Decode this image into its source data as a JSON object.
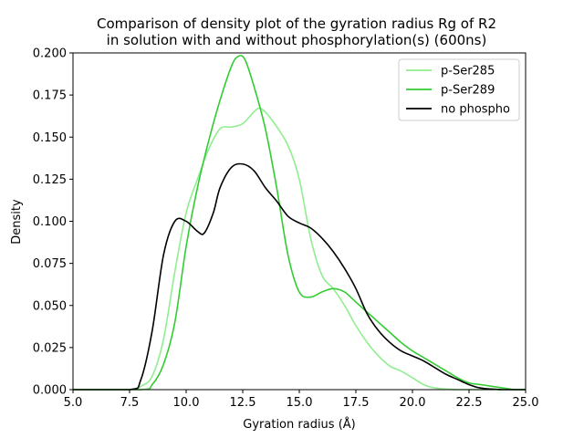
{
  "chart_data": {
    "type": "line",
    "title_line1": "Comparison of density plot of the gyration radius Rg of R2",
    "title_line2": "in solution with and without phosphorylation(s) (600ns)",
    "xlabel": "Gyration radius (Å)",
    "ylabel": "Density",
    "xlim": [
      5.0,
      25.0
    ],
    "ylim": [
      0.0,
      0.2
    ],
    "xticks": [
      "5.0",
      "7.5",
      "10.0",
      "12.5",
      "15.0",
      "17.5",
      "20.0",
      "22.5",
      "25.0"
    ],
    "yticks": [
      "0.000",
      "0.025",
      "0.050",
      "0.075",
      "0.100",
      "0.125",
      "0.150",
      "0.175",
      "0.200"
    ],
    "legend_position": "upper right",
    "series": [
      {
        "name": "p-Ser285",
        "color": "#90ee90",
        "x": [
          5.0,
          7.5,
          8.0,
          8.5,
          9.0,
          9.5,
          10.0,
          10.5,
          11.0,
          11.5,
          12.0,
          12.5,
          13.0,
          13.3,
          13.8,
          14.5,
          15.0,
          15.5,
          16.0,
          16.5,
          17.0,
          17.5,
          18.0,
          18.5,
          19.0,
          19.5,
          20.0,
          20.5,
          21.0,
          22.0,
          23.0,
          25.0
        ],
        "y": [
          0.0,
          0.0,
          0.002,
          0.008,
          0.03,
          0.07,
          0.105,
          0.125,
          0.143,
          0.155,
          0.156,
          0.158,
          0.165,
          0.167,
          0.16,
          0.145,
          0.125,
          0.09,
          0.068,
          0.06,
          0.05,
          0.038,
          0.028,
          0.02,
          0.014,
          0.011,
          0.007,
          0.003,
          0.001,
          0.0,
          0.0,
          0.0
        ]
      },
      {
        "name": "p-Ser289",
        "color": "#32cd32",
        "x": [
          5.0,
          8.0,
          8.5,
          9.0,
          9.5,
          10.0,
          10.5,
          11.0,
          11.5,
          12.0,
          12.3,
          12.6,
          13.0,
          13.5,
          14.0,
          14.5,
          15.0,
          15.5,
          16.0,
          16.5,
          17.0,
          17.5,
          18.0,
          18.5,
          19.0,
          19.5,
          20.0,
          20.5,
          21.0,
          21.5,
          22.0,
          22.5,
          23.0,
          23.5,
          24.0,
          24.5,
          25.0
        ],
        "y": [
          0.0,
          0.0,
          0.003,
          0.015,
          0.04,
          0.085,
          0.12,
          0.148,
          0.172,
          0.192,
          0.198,
          0.196,
          0.18,
          0.155,
          0.12,
          0.08,
          0.058,
          0.055,
          0.058,
          0.06,
          0.058,
          0.052,
          0.046,
          0.04,
          0.034,
          0.028,
          0.023,
          0.019,
          0.015,
          0.011,
          0.007,
          0.004,
          0.003,
          0.002,
          0.001,
          0.0,
          0.0
        ]
      },
      {
        "name": "no phospho",
        "color": "#000000",
        "x": [
          5.0,
          7.5,
          8.0,
          8.5,
          9.0,
          9.5,
          10.0,
          10.5,
          10.8,
          11.2,
          11.5,
          12.0,
          12.5,
          13.0,
          13.5,
          14.0,
          14.5,
          15.0,
          15.5,
          16.0,
          16.5,
          17.0,
          17.5,
          18.0,
          18.5,
          19.0,
          19.5,
          20.0,
          20.5,
          21.0,
          21.5,
          22.0,
          22.5,
          23.0,
          24.0,
          25.0
        ],
        "y": [
          0.0,
          0.0,
          0.006,
          0.035,
          0.08,
          0.1,
          0.1,
          0.094,
          0.093,
          0.105,
          0.12,
          0.132,
          0.134,
          0.13,
          0.12,
          0.112,
          0.103,
          0.099,
          0.096,
          0.09,
          0.082,
          0.072,
          0.06,
          0.045,
          0.035,
          0.028,
          0.023,
          0.02,
          0.017,
          0.013,
          0.009,
          0.006,
          0.003,
          0.001,
          0.0,
          0.0
        ]
      }
    ]
  }
}
